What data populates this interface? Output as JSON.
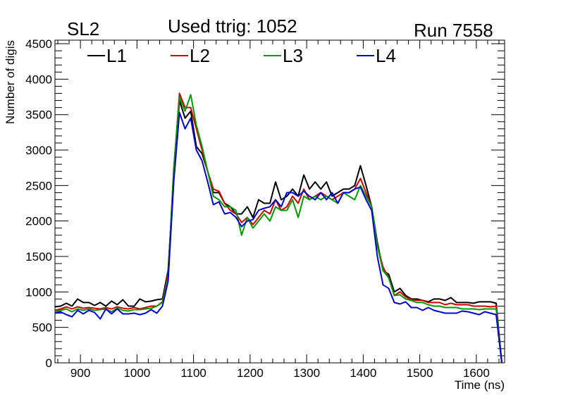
{
  "header": {
    "left_label": "SL2",
    "right_label": "Run 7558"
  },
  "chart_data": {
    "type": "line",
    "title": "Used ttrig: 1052",
    "xlabel": "Time (ns)",
    "ylabel": "Number of digis",
    "xlim": [
      855,
      1650
    ],
    "ylim": [
      0,
      4550
    ],
    "x_ticks": [
      900,
      1000,
      1100,
      1200,
      1300,
      1400,
      1500,
      1600
    ],
    "y_ticks": [
      0,
      500,
      1000,
      1500,
      2000,
      2500,
      3000,
      3500,
      4000,
      4500
    ],
    "grid": false,
    "legend_position": "top-left",
    "series": [
      {
        "name": "L1",
        "color": "#000000",
        "x": [
          855,
          865,
          875,
          885,
          895,
          905,
          915,
          925,
          935,
          945,
          955,
          965,
          975,
          985,
          995,
          1005,
          1015,
          1025,
          1035,
          1045,
          1055,
          1065,
          1075,
          1085,
          1095,
          1105,
          1115,
          1125,
          1135,
          1145,
          1155,
          1165,
          1175,
          1185,
          1195,
          1205,
          1215,
          1225,
          1235,
          1245,
          1255,
          1265,
          1275,
          1285,
          1295,
          1305,
          1315,
          1325,
          1335,
          1345,
          1355,
          1365,
          1375,
          1385,
          1395,
          1405,
          1415,
          1425,
          1435,
          1445,
          1455,
          1465,
          1475,
          1485,
          1495,
          1505,
          1515,
          1525,
          1535,
          1545,
          1555,
          1565,
          1575,
          1585,
          1595,
          1605,
          1615,
          1625,
          1635,
          1645
        ],
        "y": [
          790,
          800,
          840,
          800,
          900,
          850,
          850,
          810,
          850,
          800,
          870,
          820,
          890,
          800,
          800,
          900,
          860,
          870,
          890,
          900,
          1300,
          2600,
          3700,
          3450,
          3550,
          3050,
          2950,
          2700,
          2400,
          2400,
          2250,
          2200,
          2100,
          2100,
          2200,
          2050,
          2300,
          2250,
          2250,
          2550,
          2300,
          2350,
          2450,
          2350,
          2650,
          2450,
          2550,
          2450,
          2550,
          2350,
          2400,
          2450,
          2450,
          2500,
          2780,
          2500,
          2200,
          1700,
          1300,
          1250,
          1000,
          1050,
          950,
          900,
          900,
          880,
          860,
          900,
          900,
          880,
          920,
          850,
          850,
          850,
          840,
          860,
          860,
          860,
          840,
          0
        ]
      },
      {
        "name": "L2",
        "color": "#cc0000",
        "x": [
          855,
          865,
          875,
          885,
          895,
          905,
          915,
          925,
          935,
          945,
          955,
          965,
          975,
          985,
          995,
          1005,
          1015,
          1025,
          1035,
          1045,
          1055,
          1065,
          1075,
          1085,
          1095,
          1105,
          1115,
          1125,
          1135,
          1145,
          1155,
          1165,
          1175,
          1185,
          1195,
          1205,
          1215,
          1225,
          1235,
          1245,
          1255,
          1265,
          1275,
          1285,
          1295,
          1305,
          1315,
          1325,
          1335,
          1345,
          1355,
          1365,
          1375,
          1385,
          1395,
          1405,
          1415,
          1425,
          1435,
          1445,
          1455,
          1465,
          1475,
          1485,
          1495,
          1505,
          1515,
          1525,
          1535,
          1545,
          1555,
          1565,
          1575,
          1585,
          1595,
          1605,
          1615,
          1625,
          1635,
          1645
        ],
        "y": [
          740,
          760,
          790,
          760,
          790,
          770,
          780,
          770,
          760,
          780,
          760,
          790,
          770,
          760,
          780,
          760,
          780,
          800,
          800,
          860,
          1250,
          2700,
          3800,
          3600,
          3600,
          3300,
          3000,
          2700,
          2450,
          2420,
          2250,
          2150,
          2100,
          1980,
          2050,
          1950,
          2050,
          2150,
          2100,
          2300,
          2150,
          2200,
          2350,
          2250,
          2450,
          2300,
          2350,
          2400,
          2350,
          2300,
          2350,
          2400,
          2400,
          2450,
          2600,
          2400,
          2200,
          1650,
          1350,
          1200,
          950,
          1000,
          930,
          890,
          880,
          880,
          850,
          850,
          850,
          820,
          840,
          820,
          820,
          820,
          800,
          800,
          800,
          790,
          800,
          0
        ]
      },
      {
        "name": "L3",
        "color": "#009900",
        "x": [
          855,
          865,
          875,
          885,
          895,
          905,
          915,
          925,
          935,
          945,
          955,
          965,
          975,
          985,
          995,
          1005,
          1015,
          1025,
          1035,
          1045,
          1055,
          1065,
          1075,
          1085,
          1095,
          1105,
          1115,
          1125,
          1135,
          1145,
          1155,
          1165,
          1175,
          1185,
          1195,
          1205,
          1215,
          1225,
          1235,
          1245,
          1255,
          1265,
          1275,
          1285,
          1295,
          1305,
          1315,
          1325,
          1335,
          1345,
          1355,
          1365,
          1375,
          1385,
          1395,
          1405,
          1415,
          1425,
          1435,
          1445,
          1455,
          1465,
          1475,
          1485,
          1495,
          1505,
          1515,
          1525,
          1535,
          1545,
          1555,
          1565,
          1575,
          1585,
          1595,
          1605,
          1615,
          1625,
          1635,
          1645
        ],
        "y": [
          720,
          740,
          760,
          720,
          760,
          740,
          760,
          740,
          750,
          760,
          720,
          770,
          740,
          730,
          750,
          750,
          760,
          770,
          800,
          850,
          1200,
          2750,
          3750,
          3550,
          3780,
          3350,
          3050,
          2700,
          2350,
          2300,
          2200,
          2200,
          2150,
          1800,
          2050,
          1900,
          2000,
          2100,
          2000,
          2200,
          2150,
          2150,
          2300,
          2050,
          2350,
          2300,
          2350,
          2300,
          2350,
          2300,
          2250,
          2400,
          2350,
          2300,
          2500,
          2350,
          2200,
          1650,
          1300,
          1200,
          950,
          960,
          900,
          880,
          850,
          850,
          820,
          800,
          800,
          780,
          780,
          780,
          760,
          760,
          760,
          750,
          760,
          760,
          760,
          0
        ]
      },
      {
        "name": "L4",
        "color": "#0000cc",
        "x": [
          855,
          865,
          875,
          885,
          895,
          905,
          915,
          925,
          935,
          945,
          955,
          965,
          975,
          985,
          995,
          1005,
          1015,
          1025,
          1035,
          1045,
          1055,
          1065,
          1075,
          1085,
          1095,
          1105,
          1115,
          1125,
          1135,
          1145,
          1155,
          1165,
          1175,
          1185,
          1195,
          1205,
          1215,
          1225,
          1235,
          1245,
          1255,
          1265,
          1275,
          1285,
          1295,
          1305,
          1315,
          1325,
          1335,
          1345,
          1355,
          1365,
          1375,
          1385,
          1395,
          1405,
          1415,
          1425,
          1435,
          1445,
          1455,
          1465,
          1475,
          1485,
          1495,
          1505,
          1515,
          1525,
          1535,
          1545,
          1555,
          1565,
          1575,
          1585,
          1595,
          1605,
          1615,
          1625,
          1635,
          1645
        ],
        "y": [
          700,
          720,
          680,
          650,
          740,
          690,
          740,
          710,
          620,
          760,
          690,
          760,
          690,
          690,
          700,
          680,
          700,
          750,
          700,
          800,
          1150,
          2550,
          3530,
          3300,
          3450,
          3000,
          2850,
          2550,
          2230,
          2270,
          2100,
          2120,
          2050,
          1920,
          2000,
          2020,
          2150,
          2180,
          2200,
          2300,
          2200,
          2400,
          2400,
          2350,
          2420,
          2350,
          2300,
          2400,
          2300,
          2400,
          2250,
          2400,
          2400,
          2450,
          2480,
          2300,
          2150,
          1500,
          1100,
          1050,
          850,
          830,
          860,
          780,
          780,
          740,
          780,
          740,
          720,
          700,
          700,
          700,
          730,
          720,
          700,
          680,
          720,
          700,
          680,
          0
        ]
      }
    ]
  }
}
